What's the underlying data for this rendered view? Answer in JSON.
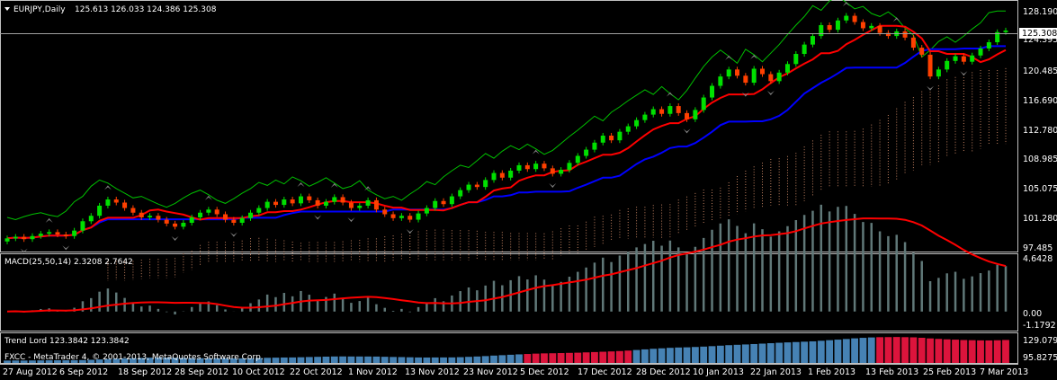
{
  "main_chart": {
    "title": "EURJPY,Daily",
    "ohlc_text": "125.613 126.033 124.386 125.308",
    "current_price_label": "125.308",
    "price_axis": [
      "128.190",
      "124.395",
      "120.485",
      "116.690",
      "112.780",
      "108.985",
      "105.075",
      "101.280",
      "97.485"
    ]
  },
  "macd": {
    "title": "MACD(25,50,14) 2.3208 2.7642",
    "axis": [
      "4.6428",
      "0.00",
      "-1.1792"
    ]
  },
  "trend_lord": {
    "title": "Trend Lord 123.3842 123.3842",
    "copyright": "FXCC - MetaTrader 4, © 2001-2013, MetaQuotes Software Corp.",
    "axis": [
      "129.0795",
      "95.8275"
    ]
  },
  "time_axis": [
    "27 Aug 2012",
    "6 Sep 2012",
    "18 Sep 2012",
    "28 Sep 2012",
    "10 Oct 2012",
    "22 Oct 2012",
    "1 Nov 2012",
    "13 Nov 2012",
    "23 Nov 2012",
    "5 Dec 2012",
    "17 Dec 2012",
    "28 Dec 2012",
    "10 Jan 2013",
    "22 Jan 2013",
    "1 Feb 2013",
    "13 Feb 2013",
    "25 Feb 2013",
    "7 Mar 2013"
  ],
  "colors": {
    "background": "#000000",
    "bull_candle": "#00e000",
    "bear_candle": "#ff4000",
    "fast_line": "#ff0000",
    "slow_line": "#0000ff",
    "chikou_line": "#00c000",
    "cloud": "#c08060",
    "fractal": "#808080",
    "macd_hist": "#607878",
    "macd_signal": "#ff0000",
    "trend_blue": "#4682b4",
    "trend_red": "#dc143c",
    "grid": "#c0c0c0"
  },
  "chart_data": {
    "type": "candlestick",
    "symbol": "EURJPY",
    "timeframe": "Daily",
    "price_range": [
      97.485,
      128.19
    ],
    "closes": [
      98.6,
      98.8,
      98.5,
      98.9,
      99.2,
      99.4,
      99.1,
      98.9,
      99.6,
      100.8,
      101.5,
      102.8,
      103.6,
      103.2,
      102.5,
      101.9,
      101.3,
      101.5,
      101.0,
      100.5,
      100.1,
      100.6,
      101.3,
      101.9,
      102.3,
      101.7,
      101.0,
      100.6,
      101.2,
      101.9,
      102.5,
      103.3,
      102.9,
      103.6,
      103.1,
      104.0,
      103.5,
      102.8,
      103.3,
      103.9,
      103.2,
      102.5,
      102.8,
      103.5,
      102.3,
      101.7,
      101.2,
      101.5,
      101.0,
      101.8,
      102.5,
      103.4,
      103.0,
      104.0,
      104.8,
      105.5,
      105.2,
      106.1,
      107.0,
      106.4,
      107.3,
      108.0,
      107.5,
      108.2,
      107.6,
      106.9,
      107.4,
      108.3,
      109.2,
      110.0,
      110.9,
      111.8,
      111.2,
      112.3,
      113.0,
      113.8,
      114.5,
      115.2,
      114.6,
      115.6,
      114.7,
      113.9,
      115.1,
      116.7,
      118.2,
      119.4,
      120.3,
      119.5,
      118.6,
      120.4,
      119.7,
      118.8,
      119.9,
      121.0,
      122.3,
      123.5,
      124.6,
      126.0,
      125.4,
      126.6,
      127.2,
      126.4,
      125.6,
      125.9,
      125.0,
      124.6,
      125.2,
      124.4,
      123.1,
      122.2,
      119.4,
      120.3,
      121.4,
      122.0,
      121.3,
      122.1,
      123.0,
      123.8,
      125.1,
      125.308
    ],
    "macd_histogram_range": [
      -1.1792,
      4.6428
    ],
    "trend_lord_range": [
      95.8275,
      129.0795
    ]
  }
}
